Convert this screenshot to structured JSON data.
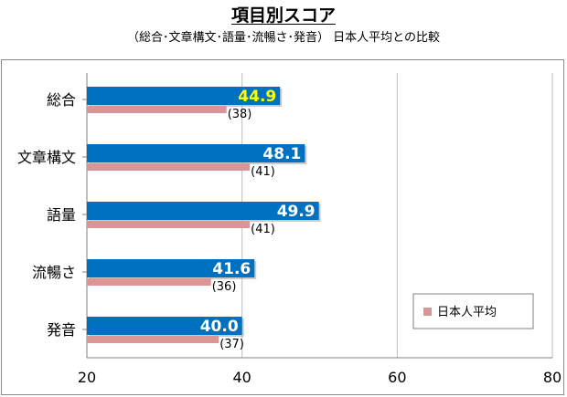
{
  "title": "項目別スコア",
  "subtitle": "（総合･文章構文･語量･流暢さ･発音） 日本人平均との比較",
  "colors": {
    "score_bar": "#0070C0",
    "average_bar": "#D99694",
    "highlight_label": "#FFFF00",
    "gridline": "#BFBFBF"
  },
  "chart_data": {
    "type": "bar",
    "orientation": "horizontal",
    "title": "項目別スコア",
    "subtitle": "（総合･文章構文･語量･流暢さ･発音） 日本人平均との比較",
    "categories": [
      "総合",
      "文章構文",
      "語量",
      "流暢さ",
      "発音"
    ],
    "series": [
      {
        "values": [
          44.9,
          48.1,
          49.9,
          41.6,
          40.0
        ],
        "labels": [
          "44.9",
          "48.1",
          "49.9",
          "41.6",
          "40.0"
        ]
      },
      {
        "name": "日本人平均",
        "values": [
          38,
          41,
          41,
          36,
          37
        ],
        "labels": [
          "(38)",
          "(41)",
          "(41)",
          "(36)",
          "(37)"
        ]
      }
    ],
    "xlim": [
      20,
      80
    ],
    "xticks": [
      "20",
      "40",
      "60",
      "80"
    ],
    "grid": true,
    "legend_position": "bottom-right"
  }
}
